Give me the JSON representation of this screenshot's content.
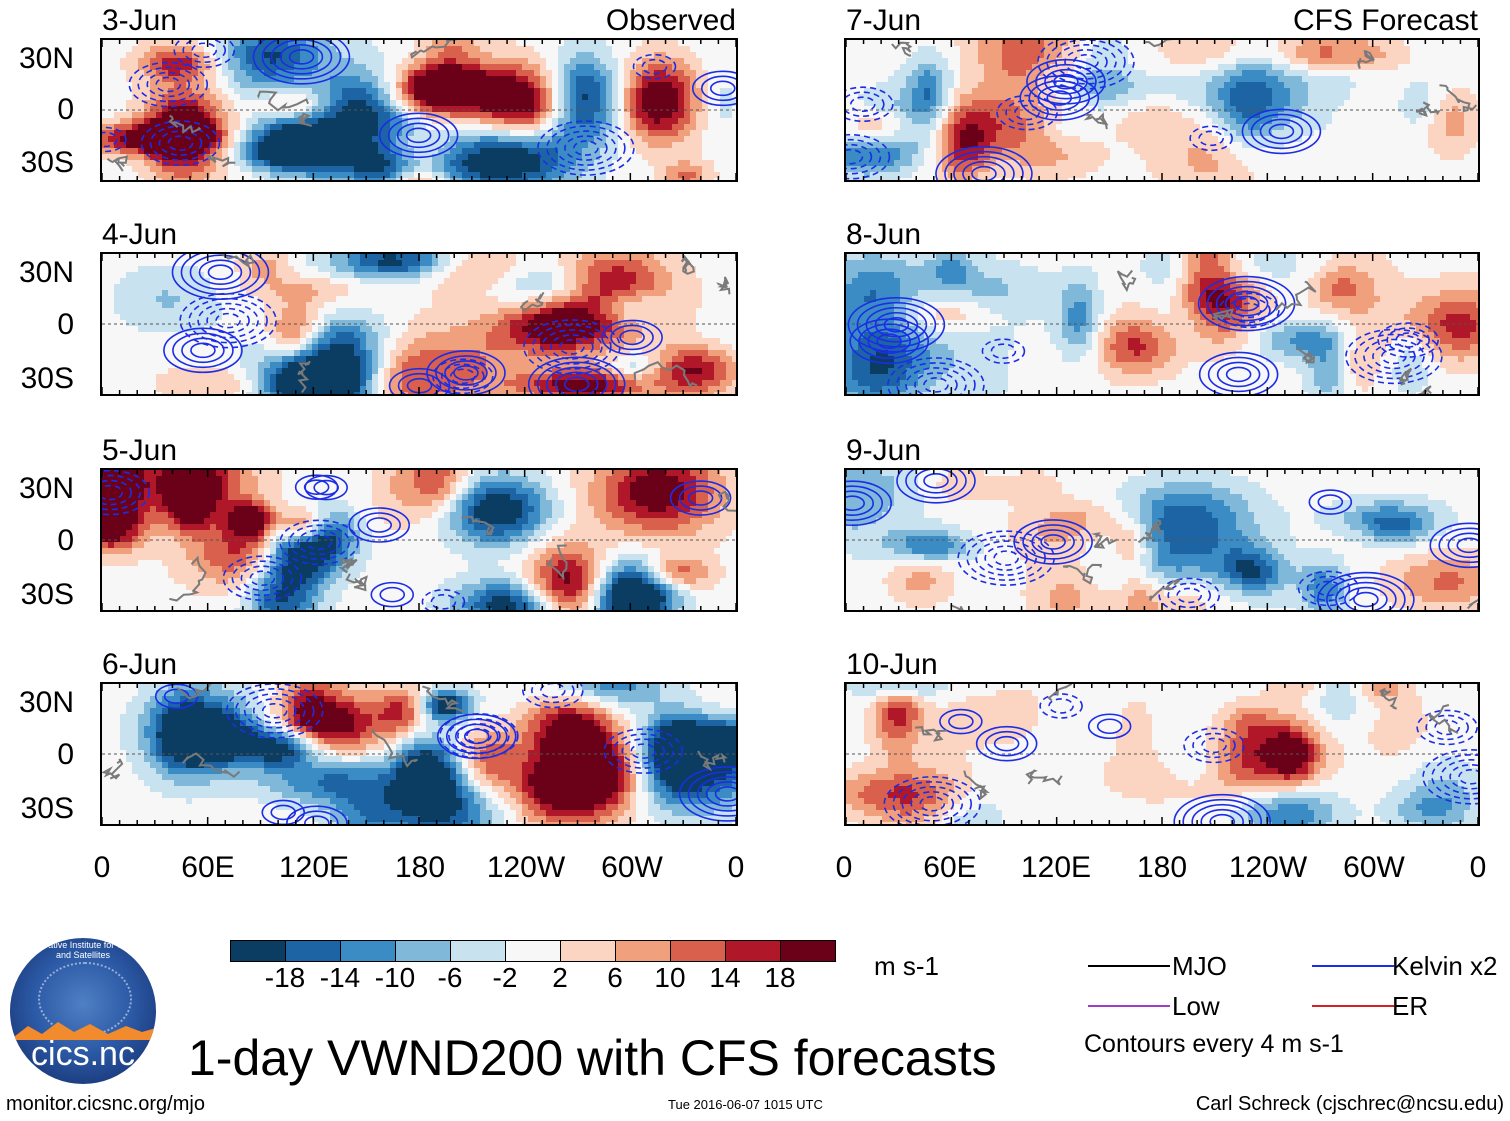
{
  "chart_data": {
    "type": "heatmap",
    "title": "1-day VWND200 with CFS forecasts",
    "variable": "VWND200",
    "units": "m s-1",
    "contour_note": "Contours every 4 m s-1",
    "observed_label": "Observed",
    "forecast_label": "CFS Forecast",
    "lat_ticks": [
      "30N",
      "0",
      "30S"
    ],
    "lon_ticks": [
      "0",
      "60E",
      "120E",
      "180",
      "120W",
      "60W",
      "0"
    ],
    "xlim": [
      0,
      360
    ],
    "ylim": [
      -40,
      40
    ],
    "observed_panels": [
      "3-Jun",
      "4-Jun",
      "5-Jun",
      "6-Jun"
    ],
    "forecast_panels": [
      "7-Jun",
      "8-Jun",
      "9-Jun",
      "10-Jun"
    ],
    "colorbar": {
      "levels": [
        -18,
        -14,
        -10,
        -6,
        -2,
        2,
        6,
        10,
        14,
        18
      ],
      "labels": [
        "-18",
        "-14",
        "-10",
        "-6",
        "-2",
        "2",
        "6",
        "10",
        "14",
        "18"
      ],
      "colors": [
        "#0b3d63",
        "#1d64a4",
        "#3b8cc5",
        "#7fb8d9",
        "#c9e2ef",
        "#f7f7f7",
        "#fbd5c2",
        "#f1a07e",
        "#d9604c",
        "#b0182a",
        "#6b0119"
      ]
    },
    "legend": [
      {
        "name": "MJO",
        "color": "#000000"
      },
      {
        "name": "Kelvin x2",
        "color": "#1b2de6"
      },
      {
        "name": "Low",
        "color": "#a03dc4"
      },
      {
        "name": "ER",
        "color": "#d42020"
      }
    ]
  },
  "footer": {
    "url": "monitor.cicsnc.org/mjo",
    "timestamp": "Tue 2016-06-07 1015 UTC",
    "author": "Carl Schreck (cjschrec@ncsu.edu)"
  },
  "logo": {
    "text": "cics.nc",
    "ring_text": "Cooperative Institute for Climate and Satellites"
  }
}
